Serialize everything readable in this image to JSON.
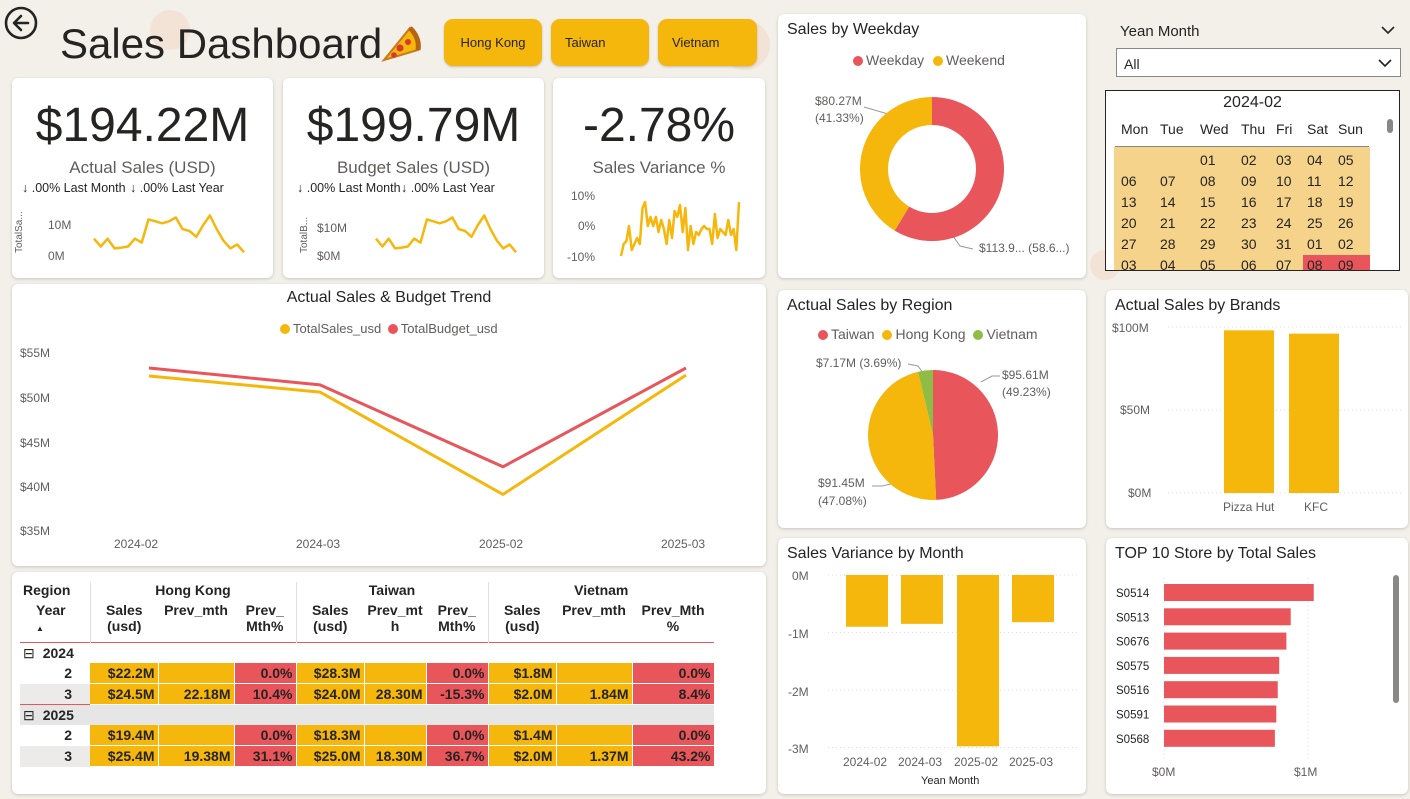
{
  "header": {
    "title": "Sales Dashboard",
    "buttons": [
      "Hong Kong",
      "Taiwan",
      "Vietnam"
    ]
  },
  "colors": {
    "accent": "#f6b70d",
    "red": "#e8555a",
    "green": "#8fbc45",
    "text": "#252423"
  },
  "kpis": [
    {
      "value": "$194.22M",
      "label": "Actual Sales (USD)",
      "sub1": "↓ .00% Last Month",
      "sub2": "↓ .00% Last Year",
      "axis_title": "TotalSa...",
      "ticks": [
        "10M",
        "0M"
      ]
    },
    {
      "value": "$199.79M",
      "label": "Budget Sales (USD)",
      "sub1": "↓ .00% Last Month",
      "sub2": "↓ .00% Last Year",
      "axis_title": "TotalB...",
      "ticks": [
        "$10M",
        "$0M"
      ]
    },
    {
      "value": "-2.78%",
      "label": "Sales Variance %",
      "ticks": [
        "10%",
        "0%",
        "-10%"
      ]
    }
  ],
  "trend_chart": {
    "title": "Actual Sales & Budget Trend",
    "legend": [
      "TotalSales_usd",
      "TotalBudget_usd"
    ],
    "y_ticks": [
      "$55M",
      "$50M",
      "$45M",
      "$40M",
      "$35M"
    ],
    "x_ticks": [
      "2024-02",
      "2024-03",
      "2025-02",
      "2025-03"
    ]
  },
  "weekday_chart": {
    "title": "Sales by Weekday",
    "legend": [
      "Weekday",
      "Weekend"
    ],
    "label_weekend": "$80.27M",
    "label_weekend_pct": "(41.33%)",
    "label_weekday": "$113.9...  (58.6...)"
  },
  "region_chart": {
    "title": "Actual Sales by Region",
    "legend": [
      "Taiwan",
      "Hong Kong",
      "Vietnam"
    ],
    "label_vietnam": "$7.17M (3.69%)",
    "label_taiwan": "$95.61M",
    "label_taiwan_pct": "(49.23%)",
    "label_hk": "$91.45M",
    "label_hk_pct": "(47.08%)"
  },
  "brands_chart": {
    "title": "Actual Sales by Brands",
    "y_ticks": [
      "$100M",
      "$50M",
      "$0M"
    ],
    "categories": [
      "Pizza Hut",
      "KFC"
    ]
  },
  "variance_chart": {
    "title": "Sales Variance by Month",
    "y_ticks": [
      "0M",
      "-1M",
      "-2M",
      "-3M"
    ],
    "categories": [
      "2024-02",
      "2024-03",
      "2025-02",
      "2025-03"
    ],
    "x_title": "Yean Month"
  },
  "top_stores_chart": {
    "title": "TOP 10 Store by Total Sales",
    "categories": [
      "S0514",
      "S0513",
      "S0676",
      "S0575",
      "S0516",
      "S0591",
      "S0568"
    ],
    "x_ticks": [
      "$0M",
      "$1M"
    ]
  },
  "slicer": {
    "title": "Yean Month",
    "value": "All",
    "calendar_title": "2024-02",
    "weekdays": [
      "Mon",
      "Tue",
      "Wed",
      "Thu",
      "Fri",
      "Sat",
      "Sun"
    ],
    "weeks": [
      [
        "",
        "",
        "01",
        "02",
        "03",
        "04",
        "05"
      ],
      [
        "06",
        "07",
        "08",
        "09",
        "10",
        "11",
        "12"
      ],
      [
        "13",
        "14",
        "15",
        "16",
        "17",
        "18",
        "19"
      ],
      [
        "20",
        "21",
        "22",
        "23",
        "24",
        "25",
        "26"
      ],
      [
        "27",
        "28",
        "29",
        "30",
        "31",
        "01",
        "02"
      ],
      [
        "03",
        "04",
        "05",
        "06",
        "07",
        "08",
        "09"
      ]
    ]
  },
  "matrix": {
    "h_region": "Region",
    "h_year": "Year",
    "regions": [
      "Hong Kong",
      "Taiwan",
      "Vietnam"
    ],
    "subheaders": [
      [
        "Sales",
        "(usd)"
      ],
      [
        "Prev_mth",
        ""
      ],
      [
        "Prev_",
        "Mth%"
      ],
      [
        "Sales",
        "(usd)"
      ],
      [
        "Prev_mt",
        "h"
      ],
      [
        "Prev_",
        "Mth%"
      ],
      [
        "Sales",
        "(usd)"
      ],
      [
        "Prev_mth",
        ""
      ],
      [
        "Prev_Mth",
        "%"
      ]
    ],
    "groups": [
      {
        "year": "2024",
        "rows": [
          {
            "month": "2",
            "cells": [
              "$22.2M",
              "",
              "0.0%",
              "$28.3M",
              "",
              "0.0%",
              "$1.8M",
              "",
              "0.0%"
            ]
          },
          {
            "month": "3",
            "cells": [
              "$24.5M",
              "22.18M",
              "10.4%",
              "$24.0M",
              "28.30M",
              "-15.3%",
              "$2.0M",
              "1.84M",
              "8.4%"
            ]
          }
        ]
      },
      {
        "year": "2025",
        "rows": [
          {
            "month": "2",
            "cells": [
              "$19.4M",
              "",
              "0.0%",
              "$18.3M",
              "",
              "0.0%",
              "$1.4M",
              "",
              "0.0%"
            ]
          },
          {
            "month": "3",
            "cells": [
              "$25.4M",
              "19.38M",
              "31.1%",
              "$25.0M",
              "18.30M",
              "36.7%",
              "$2.0M",
              "1.37M",
              "43.2%"
            ]
          }
        ]
      }
    ]
  },
  "chart_data": [
    {
      "type": "line",
      "title": "Actual Sales & Budget Trend",
      "categories": [
        "2024-02",
        "2024-03",
        "2025-02",
        "2025-03"
      ],
      "series": [
        {
          "name": "TotalSales_usd",
          "values": [
            52.3,
            50.5,
            39.0,
            52.4
          ]
        },
        {
          "name": "TotalBudget_usd",
          "values": [
            53.2,
            51.3,
            42.1,
            53.2
          ]
        }
      ],
      "ylim": [
        35,
        55
      ],
      "y_unit": "$M",
      "legend": "top-center"
    },
    {
      "type": "pie",
      "title": "Sales by Weekday",
      "donut": true,
      "categories": [
        "Weekday",
        "Weekend"
      ],
      "values": [
        113.95,
        80.27
      ],
      "percent": [
        58.67,
        41.33
      ]
    },
    {
      "type": "pie",
      "title": "Actual Sales by Region",
      "categories": [
        "Taiwan",
        "Hong Kong",
        "Vietnam"
      ],
      "values": [
        95.61,
        91.45,
        7.17
      ],
      "percent": [
        49.23,
        47.08,
        3.69
      ]
    },
    {
      "type": "bar",
      "title": "Actual Sales by Brands",
      "categories": [
        "Pizza Hut",
        "KFC"
      ],
      "values": [
        98,
        96
      ],
      "ylim": [
        0,
        110
      ],
      "y_unit": "$M"
    },
    {
      "type": "bar",
      "title": "Sales Variance by Month",
      "categories": [
        "2024-02",
        "2024-03",
        "2025-02",
        "2025-03"
      ],
      "values": [
        -0.9,
        -0.85,
        -2.98,
        -0.82
      ],
      "ylim": [
        -3.1,
        0.1
      ],
      "y_unit": "M",
      "xlabel": "Yean Month"
    },
    {
      "type": "bar",
      "orientation": "horizontal",
      "title": "TOP 10 Store by Total Sales",
      "categories": [
        "S0514",
        "S0513",
        "S0676",
        "S0575",
        "S0516",
        "S0591",
        "S0568"
      ],
      "values": [
        1.04,
        0.88,
        0.85,
        0.8,
        0.79,
        0.78,
        0.77
      ],
      "xlim": [
        0,
        1.2
      ],
      "x_unit": "$M"
    },
    {
      "type": "line",
      "title": "Actual Sales (USD) sparkline",
      "values": [
        5.5,
        3.5,
        5.5,
        3.0,
        3.2,
        3.5,
        5.5,
        4.5,
        10.5,
        10.0,
        9.5,
        10.0,
        11.0,
        8.0,
        7.5,
        6.0,
        9.0,
        11.5,
        8.0,
        5.0,
        3.0,
        4.0,
        2.0
      ],
      "ylim": [
        0,
        15
      ],
      "y_unit": "M"
    },
    {
      "type": "line",
      "title": "Budget Sales (USD) sparkline",
      "values": [
        5.5,
        3.5,
        5.5,
        3.0,
        3.2,
        3.5,
        5.5,
        4.5,
        10.5,
        10.0,
        9.5,
        10.0,
        11.0,
        8.0,
        7.5,
        6.0,
        9.0,
        11.5,
        8.0,
        5.0,
        3.0,
        4.0,
        2.0
      ],
      "ylim": [
        0,
        15
      ],
      "y_unit": "$M"
    },
    {
      "type": "line",
      "title": "Sales Variance % sparkline",
      "values": [
        -10,
        -6,
        -5,
        0,
        -8,
        -6,
        -4,
        -6,
        6,
        8,
        0,
        3,
        0,
        3,
        -2,
        2,
        -1,
        -6,
        2,
        -4,
        5,
        3,
        7,
        -2,
        6,
        -8,
        0,
        -6,
        -2,
        -3,
        -1,
        0,
        -1,
        -1,
        -6,
        4,
        -4,
        -1,
        -2,
        -3,
        2,
        -3,
        -1,
        -8,
        8
      ],
      "ylim": [
        -10,
        10
      ],
      "y_unit": "%"
    }
  ]
}
